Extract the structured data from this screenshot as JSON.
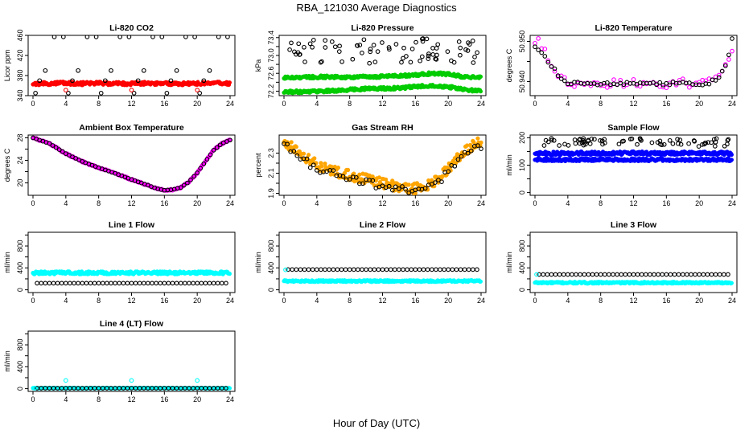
{
  "figure": {
    "title": "RBA_121030  Average Diagnostics",
    "xlabel": "Hour of Day (UTC)"
  },
  "chart_data": [
    {
      "type": "scatter",
      "title": "Li-820 CO2",
      "ylabel": "Licor ppm",
      "xlim": [
        0,
        24
      ],
      "ylim": [
        340,
        460
      ],
      "xticks": [
        0,
        4,
        8,
        12,
        16,
        20,
        24
      ],
      "yticks": [
        340,
        380,
        420,
        460
      ],
      "ytick_labels": [
        "340",
        "380",
        "420",
        "460"
      ],
      "series": [
        {
          "color": "#ff0000",
          "marker": "filled",
          "kind": "dense",
          "values": [
            364,
            364,
            365,
            364,
            365,
            364,
            364,
            365,
            364,
            364,
            364,
            365,
            364
          ],
          "band": 3
        },
        {
          "color": "#000000",
          "marker": "open",
          "kind": "pattern",
          "period": 4,
          "start": 0.3,
          "levels": [
            345,
            370,
            390,
            457
          ],
          "offset": [
            0.0,
            0.5,
            1.2,
            2.3
          ]
        },
        {
          "color": "#ff0000",
          "marker": "open",
          "kind": "points",
          "x": [
            4.0,
            12.0,
            20.0
          ],
          "y": [
            351,
            351,
            351
          ]
        }
      ]
    },
    {
      "type": "scatter",
      "title": "Li-820 Pressure",
      "ylabel": "kPa",
      "xlim": [
        0,
        24
      ],
      "ylim": [
        72.1,
        73.45
      ],
      "xticks": [
        0,
        4,
        8,
        12,
        16,
        20,
        24
      ],
      "yticks": [
        72.2,
        72.4,
        72.6,
        72.8,
        73.0,
        73.2,
        73.4
      ],
      "ytick_labels": [
        "72.2",
        "",
        "72.6",
        "",
        "73.0",
        "",
        "73.4"
      ],
      "series": [
        {
          "color": "#00cc00",
          "marker": "filled",
          "kind": "dense",
          "values": [
            72.5,
            72.51,
            72.52,
            72.52,
            72.51,
            72.52,
            72.53,
            72.54,
            72.56,
            72.6,
            72.58,
            72.52,
            72.5
          ],
          "band": 0.03
        },
        {
          "color": "#00cc00",
          "marker": "filled",
          "kind": "dense",
          "values": [
            72.18,
            72.19,
            72.2,
            72.21,
            72.23,
            72.26,
            72.26,
            72.27,
            72.3,
            72.33,
            72.3,
            72.23,
            72.21
          ],
          "band": 0.03
        },
        {
          "color": "#000000",
          "marker": "open",
          "kind": "scatter",
          "seed": 7,
          "ymin": 72.82,
          "ymax": 73.38,
          "n": 75
        }
      ]
    },
    {
      "type": "scatter",
      "title": "Li-820 Temperature",
      "ylabel": "degrees C",
      "xlim": [
        0,
        24
      ],
      "ylim": [
        50.9365,
        50.9515
      ],
      "xticks": [
        0,
        4,
        8,
        12,
        16,
        20,
        24
      ],
      "yticks": [
        50.94,
        50.945,
        50.95
      ],
      "ytick_labels": [
        "50.940",
        "",
        "50.950"
      ],
      "series": [
        {
          "color": "#ff00ff",
          "marker": "open",
          "kind": "curve",
          "x": [
            0,
            0.5,
            1,
            1.5,
            2,
            2.5,
            3,
            3.5,
            4,
            6,
            8,
            10,
            12,
            14,
            16,
            18,
            20,
            21,
            21.5,
            22,
            22.5,
            23,
            23.5,
            24
          ],
          "y": [
            50.95,
            50.9495,
            50.948,
            50.946,
            50.944,
            50.9425,
            50.9412,
            50.9405,
            50.9398,
            50.9395,
            50.9395,
            50.9395,
            50.9395,
            50.9395,
            50.9395,
            50.9395,
            50.9395,
            50.9397,
            50.94,
            50.9405,
            50.9415,
            50.943,
            50.9455,
            50.948
          ],
          "jitter": 0.0012
        },
        {
          "color": "#000000",
          "marker": "open",
          "kind": "curve",
          "x": [
            0,
            0.5,
            1,
            1.5,
            2,
            2.5,
            3,
            3.5,
            4,
            6,
            8,
            10,
            12,
            14,
            16,
            18,
            20,
            21,
            21.5,
            22,
            22.5,
            23,
            23.5,
            24
          ],
          "y": [
            50.9488,
            50.948,
            50.947,
            50.9455,
            50.944,
            50.9425,
            50.9412,
            50.9403,
            50.9397,
            50.9395,
            50.9395,
            50.9395,
            50.9395,
            50.9395,
            50.9395,
            50.9395,
            50.9395,
            50.9396,
            50.94,
            50.9406,
            50.9415,
            50.9428,
            50.9455,
            50.9505
          ],
          "jitter": 0.0004
        }
      ]
    },
    {
      "type": "scatter",
      "title": "Ambient Box Temperature",
      "ylabel": "degrees C",
      "xlim": [
        0,
        24
      ],
      "ylim": [
        17.8,
        28.5
      ],
      "xticks": [
        0,
        4,
        8,
        12,
        16,
        20,
        24
      ],
      "yticks": [
        20,
        22,
        24,
        26,
        28
      ],
      "ytick_labels": [
        "20",
        "",
        "24",
        "",
        "28"
      ],
      "series": [
        {
          "color": "#ff00ff",
          "marker": "filled",
          "kind": "curve",
          "x": [
            0,
            2,
            4,
            6,
            8,
            10,
            12,
            14,
            15,
            16,
            17,
            18,
            19,
            20,
            21,
            22,
            23,
            24
          ],
          "y": [
            28.0,
            27.0,
            25.2,
            23.8,
            22.7,
            21.7,
            20.6,
            19.6,
            19.0,
            18.7,
            18.8,
            19.2,
            20.2,
            21.8,
            23.8,
            25.8,
            27.0,
            27.6
          ],
          "jitter": 0.15
        },
        {
          "color": "#000000",
          "marker": "open",
          "kind": "curve",
          "x": [
            0,
            2,
            4,
            6,
            8,
            10,
            12,
            14,
            15,
            16,
            17,
            18,
            19,
            20,
            21,
            22,
            23,
            24
          ],
          "y": [
            28.0,
            27.0,
            25.2,
            23.8,
            22.7,
            21.7,
            20.6,
            19.6,
            19.0,
            18.7,
            18.8,
            19.2,
            20.2,
            21.8,
            23.8,
            25.8,
            27.0,
            27.6
          ],
          "jitter": 0.0
        }
      ]
    },
    {
      "type": "scatter",
      "title": "Gas Stream RH",
      "ylabel": "percent",
      "xlim": [
        0,
        24
      ],
      "ylim": [
        1.88,
        2.48
      ],
      "xticks": [
        0,
        4,
        8,
        12,
        16,
        20,
        24
      ],
      "yticks": [
        1.9,
        2.0,
        2.1,
        2.2,
        2.3
      ],
      "ytick_labels": [
        "1.9",
        "",
        "2.1",
        "",
        "2.3"
      ],
      "series": [
        {
          "color": "#ffa500",
          "marker": "filled",
          "kind": "curve",
          "x": [
            0,
            1,
            2,
            3,
            4,
            5,
            6,
            7,
            8,
            9,
            10,
            11,
            12,
            13,
            14,
            15,
            16,
            17,
            18,
            19,
            20,
            21,
            22,
            23,
            24
          ],
          "y": [
            2.42,
            2.36,
            2.3,
            2.24,
            2.19,
            2.15,
            2.12,
            2.1,
            2.08,
            2.06,
            2.04,
            2.02,
            2.0,
            1.98,
            1.96,
            1.95,
            1.95,
            1.96,
            2.0,
            2.06,
            2.14,
            2.24,
            2.32,
            2.38,
            2.42
          ],
          "jitter": 0.05
        },
        {
          "color": "#000000",
          "marker": "open",
          "kind": "curve",
          "x": [
            0,
            1,
            2,
            3,
            4,
            5,
            6,
            7,
            8,
            9,
            10,
            11,
            12,
            13,
            14,
            15,
            16,
            17,
            18,
            19,
            20,
            21,
            22,
            23,
            24
          ],
          "y": [
            2.4,
            2.33,
            2.26,
            2.2,
            2.15,
            2.12,
            2.1,
            2.08,
            2.05,
            2.03,
            2.01,
            1.99,
            1.97,
            1.96,
            1.94,
            1.93,
            1.92,
            1.94,
            1.97,
            2.03,
            2.12,
            2.21,
            2.28,
            2.34,
            2.36
          ],
          "jitter": 0.035
        }
      ]
    },
    {
      "type": "scatter",
      "title": "Sample Flow",
      "ylabel": "ml/min",
      "xlim": [
        0,
        24
      ],
      "ylim": [
        -10,
        210
      ],
      "xticks": [
        0,
        4,
        8,
        12,
        16,
        20,
        24
      ],
      "yticks": [
        0,
        50,
        100,
        150,
        200
      ],
      "ytick_labels": [
        "0",
        "",
        "100",
        "",
        "200"
      ],
      "series": [
        {
          "color": "#0000ff",
          "marker": "filled",
          "kind": "dense",
          "values": [
            143,
            143,
            144,
            144,
            144,
            144,
            144,
            144,
            144,
            144,
            144,
            144,
            143
          ],
          "band": 6
        },
        {
          "color": "#0000ff",
          "marker": "filled",
          "kind": "dense",
          "values": [
            120,
            120,
            120,
            120,
            120,
            120,
            120,
            120,
            120,
            120,
            120,
            120,
            120
          ],
          "band": 5
        },
        {
          "color": "#000000",
          "marker": "open",
          "kind": "scatter",
          "seed": 11,
          "ymin": 168,
          "ymax": 198,
          "n": 70
        }
      ]
    },
    {
      "type": "scatter",
      "title": "Line 1 Flow",
      "ylabel": "ml/min",
      "xlim": [
        0,
        24
      ],
      "ylim": [
        -50,
        1050
      ],
      "xticks": [
        0,
        4,
        8,
        12,
        16,
        20,
        24
      ],
      "yticks": [
        0,
        200,
        400,
        600,
        800,
        1000
      ],
      "ytick_labels": [
        "0",
        "",
        "400",
        "",
        "800",
        ""
      ],
      "series": [
        {
          "color": "#00ffff",
          "marker": "filled",
          "kind": "dense",
          "values": [
            310,
            310,
            310,
            310,
            310,
            310,
            310,
            310,
            310,
            310,
            310,
            310,
            310
          ],
          "band": 25
        },
        {
          "color": "#000000",
          "marker": "open",
          "kind": "row",
          "y": 120
        }
      ]
    },
    {
      "type": "scatter",
      "title": "Line 2 Flow",
      "ylabel": "ml/min",
      "xlim": [
        0,
        24
      ],
      "ylim": [
        -50,
        1050
      ],
      "xticks": [
        0,
        4,
        8,
        12,
        16,
        20,
        24
      ],
      "yticks": [
        0,
        200,
        400,
        600,
        800,
        1000
      ],
      "ytick_labels": [
        "0",
        "",
        "400",
        "",
        "800",
        ""
      ],
      "series": [
        {
          "color": "#00ffff",
          "marker": "filled",
          "kind": "dense",
          "values": [
            160,
            160,
            160,
            160,
            160,
            160,
            160,
            160,
            160,
            160,
            160,
            160,
            160
          ],
          "band": 15
        },
        {
          "color": "#000000",
          "marker": "open",
          "kind": "row",
          "y": 370
        },
        {
          "color": "#00ffff",
          "marker": "open",
          "kind": "points",
          "x": [
            0.2
          ],
          "y": [
            365
          ]
        }
      ]
    },
    {
      "type": "scatter",
      "title": "Line 3 Flow",
      "ylabel": "ml/min",
      "xlim": [
        0,
        24
      ],
      "ylim": [
        -50,
        1050
      ],
      "xticks": [
        0,
        4,
        8,
        12,
        16,
        20,
        24
      ],
      "yticks": [
        0,
        200,
        400,
        600,
        800,
        1000
      ],
      "ytick_labels": [
        "0",
        "",
        "400",
        "",
        "800",
        ""
      ],
      "series": [
        {
          "color": "#00ffff",
          "marker": "filled",
          "kind": "dense",
          "values": [
            130,
            130,
            130,
            130,
            130,
            130,
            130,
            130,
            130,
            130,
            130,
            130,
            130
          ],
          "band": 15
        },
        {
          "color": "#000000",
          "marker": "open",
          "kind": "row",
          "y": 280
        },
        {
          "color": "#00ffff",
          "marker": "open",
          "kind": "points",
          "x": [
            0.2
          ],
          "y": [
            280
          ]
        }
      ]
    },
    {
      "type": "scatter",
      "title": "Line 4 (LT) Flow",
      "ylabel": "ml/min",
      "xlim": [
        0,
        24
      ],
      "ylim": [
        -50,
        1050
      ],
      "xticks": [
        0,
        4,
        8,
        12,
        16,
        20,
        24
      ],
      "yticks": [
        0,
        200,
        400,
        600,
        800,
        1000
      ],
      "ytick_labels": [
        "0",
        "",
        "400",
        "",
        "800",
        ""
      ],
      "series": [
        {
          "color": "#00ffff",
          "marker": "filled",
          "kind": "dense",
          "values": [
            10,
            10,
            10,
            10,
            10,
            10,
            10,
            10,
            10,
            10,
            10,
            10,
            10
          ],
          "band": 5
        },
        {
          "color": "#000000",
          "marker": "open",
          "kind": "row",
          "y": 8
        },
        {
          "color": "#00ffff",
          "marker": "open",
          "kind": "points",
          "x": [
            0.2,
            4.0,
            12.0,
            20.0
          ],
          "y": [
            10,
            150,
            150,
            150
          ]
        }
      ]
    }
  ]
}
